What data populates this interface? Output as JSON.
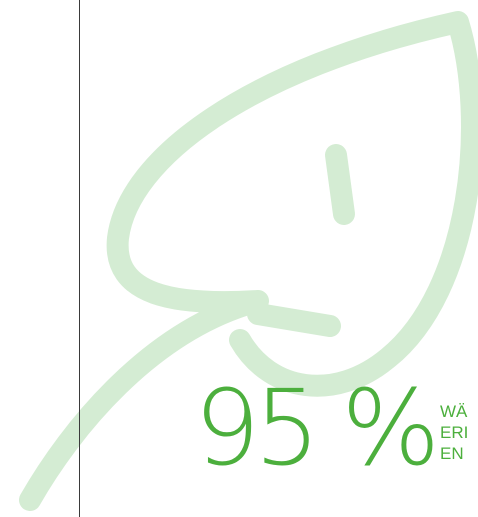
{
  "colors": {
    "leaf": "#d4ecd3",
    "accent": "#4caf3d",
    "divider": "#3a3a3a"
  },
  "decoration": {
    "icon": "leaf-icon"
  },
  "stat": {
    "value": "95 %",
    "caption_lines": [
      "WÄ",
      "ERI",
      "EN"
    ]
  }
}
